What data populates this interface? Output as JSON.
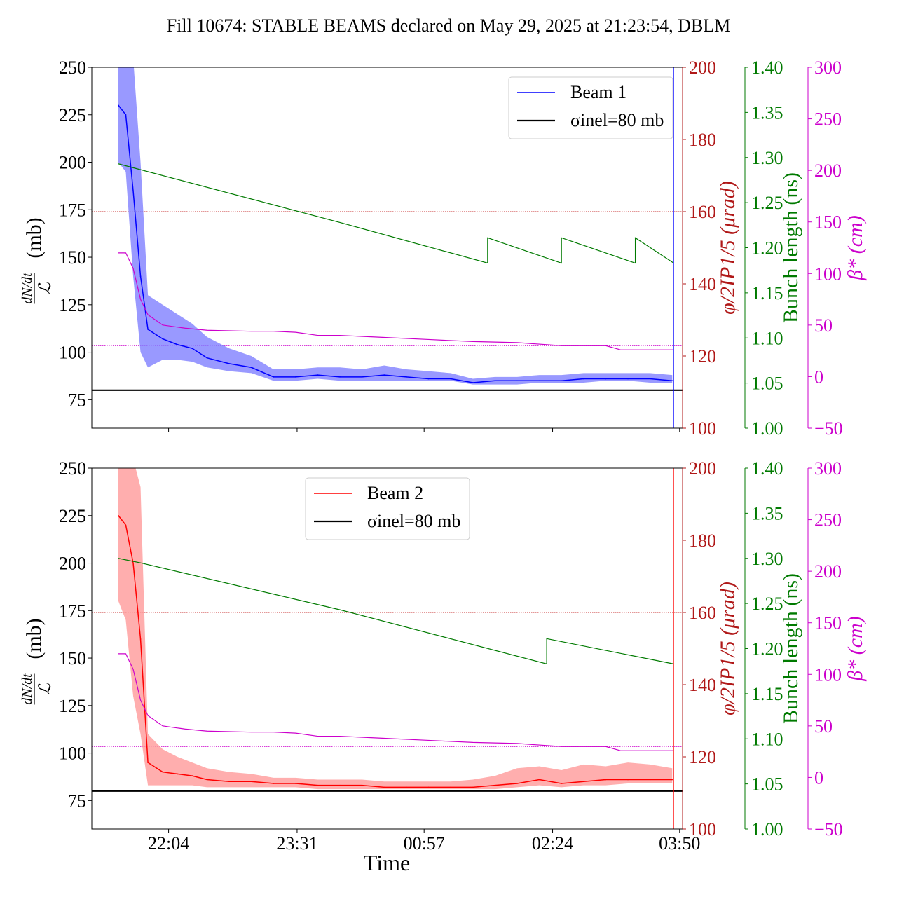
{
  "figure": {
    "title": "Fill 10674: STABLE BEAMS declared on May 29, 2025 at 21:23:54, DBLM",
    "xlabel": "Time"
  },
  "colors": {
    "beam1": "#0000ff",
    "beam1_band": "#8080ff",
    "beam2": "#ff0000",
    "beam2_band": "#ff9a9a",
    "sigma": "#000000",
    "phi": "#b01818",
    "phi_ref": "#c83232",
    "bunch": "#007a00",
    "beta": "#cc00cc"
  },
  "chart_data": [
    {
      "type": "line",
      "panel": "top",
      "ylabel_main": "(mb)",
      "ylabel_phi": "φ/2IP1/5 (μrad)",
      "ylabel_bunch": "Bunch length (ns)",
      "ylabel_beta": "β* (cm)",
      "xlim": [
        "21:12",
        "03:52"
      ],
      "x_ticks": [
        "22:04",
        "23:31",
        "00:57",
        "02:24",
        "03:50"
      ],
      "ylim_main": [
        60,
        250
      ],
      "y_ticks_main": [
        "75",
        "100",
        "125",
        "150",
        "175",
        "200",
        "225",
        "250"
      ],
      "ylim_phi": [
        100,
        200
      ],
      "y_ticks_phi": [
        "100",
        "120",
        "140",
        "160",
        "180",
        "200"
      ],
      "ylim_bunch": [
        1.0,
        1.4
      ],
      "y_ticks_bunch": [
        "1.00",
        "1.05",
        "1.10",
        "1.15",
        "1.20",
        "1.25",
        "1.30",
        "1.35",
        "1.40"
      ],
      "ylim_beta": [
        -50,
        300
      ],
      "y_ticks_beta": [
        "−50",
        "0",
        "50",
        "100",
        "150",
        "200",
        "250",
        "300"
      ],
      "legend": {
        "location": "upper right",
        "entries": [
          "Beam 1",
          "σinel=80 mb"
        ]
      },
      "sigma_inel_mb": 80,
      "phi_reference_urad": 160,
      "beta_reference_cm": 30,
      "series": [
        {
          "name": "Beam 1",
          "axis": "main",
          "x": [
            "21:30",
            "21:35",
            "21:40",
            "21:45",
            "21:50",
            "22:00",
            "22:10",
            "22:20",
            "22:30",
            "22:45",
            "23:00",
            "23:15",
            "23:30",
            "23:45",
            "00:00",
            "00:15",
            "00:30",
            "00:45",
            "01:00",
            "01:15",
            "01:30",
            "01:45",
            "02:00",
            "02:15",
            "02:30",
            "02:45",
            "03:00",
            "03:15",
            "03:30",
            "03:45"
          ],
          "values": [
            230,
            225,
            185,
            140,
            112,
            107,
            104,
            102,
            97,
            94,
            92,
            87,
            87,
            88,
            87,
            87,
            88,
            87,
            86,
            86,
            84,
            85,
            85,
            85,
            85,
            86,
            86,
            86,
            86,
            85
          ],
          "band_low": [
            200,
            195,
            140,
            100,
            92,
            96,
            96,
            95,
            92,
            90,
            89,
            85,
            85,
            86,
            85,
            85,
            85,
            85,
            85,
            85,
            83,
            83,
            83,
            84,
            84,
            84,
            85,
            85,
            84,
            84
          ],
          "band_high": [
            255,
            255,
            255,
            200,
            130,
            125,
            120,
            115,
            108,
            102,
            98,
            91,
            91,
            92,
            92,
            91,
            93,
            91,
            90,
            89,
            86,
            87,
            87,
            88,
            88,
            89,
            89,
            89,
            89,
            88
          ]
        },
        {
          "name": "Bunch length",
          "axis": "bunch",
          "x": [
            "21:30",
            "00:00",
            "01:40",
            "01:40",
            "02:30",
            "02:30",
            "03:20",
            "03:20",
            "03:46"
          ],
          "values": [
            1.293,
            1.228,
            1.183,
            1.211,
            1.183,
            1.211,
            1.183,
            1.211,
            1.183
          ]
        },
        {
          "name": "β*",
          "axis": "beta",
          "x": [
            "21:30",
            "21:35",
            "21:40",
            "21:45",
            "21:50",
            "22:00",
            "22:15",
            "22:30",
            "23:00",
            "23:15",
            "23:30",
            "23:45",
            "00:00",
            "00:30",
            "01:00",
            "01:30",
            "02:00",
            "02:30",
            "03:00",
            "03:10",
            "03:46"
          ],
          "values": [
            120,
            120,
            105,
            75,
            60,
            50,
            47,
            45,
            44,
            44,
            43,
            40,
            40,
            38,
            36,
            34,
            33,
            30,
            30,
            26,
            26
          ]
        },
        {
          "name": "Reference φ",
          "axis": "phi",
          "x": [
            "21:12",
            "03:52"
          ],
          "values": [
            160,
            160
          ]
        }
      ]
    },
    {
      "type": "line",
      "panel": "bottom",
      "ylabel_main": "(mb)",
      "ylabel_phi": "φ/2IP1/5 (μrad)",
      "ylabel_bunch": "Bunch length (ns)",
      "ylabel_beta": "β* (cm)",
      "xlim": [
        "21:12",
        "03:52"
      ],
      "x_ticks": [
        "22:04",
        "23:31",
        "00:57",
        "02:24",
        "03:50"
      ],
      "ylim_main": [
        60,
        250
      ],
      "y_ticks_main": [
        "75",
        "100",
        "125",
        "150",
        "175",
        "200",
        "225",
        "250"
      ],
      "ylim_phi": [
        100,
        200
      ],
      "y_ticks_phi": [
        "100",
        "120",
        "140",
        "160",
        "180",
        "200"
      ],
      "ylim_bunch": [
        1.0,
        1.4
      ],
      "y_ticks_bunch": [
        "1.00",
        "1.05",
        "1.10",
        "1.15",
        "1.20",
        "1.25",
        "1.30",
        "1.35",
        "1.40"
      ],
      "ylim_beta": [
        -50,
        300
      ],
      "y_ticks_beta": [
        "−50",
        "0",
        "50",
        "100",
        "150",
        "200",
        "250",
        "300"
      ],
      "legend": {
        "location": "upper center",
        "entries": [
          "Beam 2",
          "σinel=80 mb"
        ]
      },
      "sigma_inel_mb": 80,
      "phi_reference_urad": 160,
      "beta_reference_cm": 30,
      "series": [
        {
          "name": "Beam 2",
          "axis": "main",
          "x": [
            "21:30",
            "21:35",
            "21:40",
            "21:45",
            "21:50",
            "22:00",
            "22:10",
            "22:20",
            "22:30",
            "22:45",
            "23:00",
            "23:15",
            "23:30",
            "23:45",
            "00:00",
            "00:15",
            "00:30",
            "00:45",
            "01:00",
            "01:15",
            "01:30",
            "01:45",
            "02:00",
            "02:15",
            "02:30",
            "02:45",
            "03:00",
            "03:15",
            "03:30",
            "03:45"
          ],
          "values": [
            225,
            220,
            200,
            160,
            95,
            90,
            89,
            88,
            86,
            85,
            85,
            84,
            84,
            83,
            83,
            83,
            82,
            82,
            82,
            82,
            82,
            83,
            84,
            86,
            84,
            85,
            86,
            86,
            86,
            86
          ],
          "band_low": [
            180,
            170,
            130,
            110,
            83,
            83,
            83,
            83,
            82,
            82,
            82,
            82,
            82,
            81,
            81,
            81,
            81,
            81,
            81,
            81,
            81,
            81,
            82,
            83,
            82,
            83,
            83,
            84,
            84,
            84
          ],
          "band_high": [
            255,
            255,
            255,
            240,
            110,
            102,
            98,
            95,
            92,
            90,
            89,
            87,
            87,
            86,
            86,
            86,
            85,
            85,
            85,
            85,
            86,
            88,
            92,
            93,
            91,
            94,
            93,
            95,
            94,
            92
          ]
        },
        {
          "name": "Bunch length",
          "axis": "bunch",
          "x": [
            "21:30",
            "21:45",
            "00:00",
            "02:20",
            "02:20",
            "03:46"
          ],
          "values": [
            1.3,
            1.295,
            1.243,
            1.183,
            1.211,
            1.183
          ]
        },
        {
          "name": "β*",
          "axis": "beta",
          "x": [
            "21:30",
            "21:35",
            "21:40",
            "21:45",
            "21:50",
            "22:00",
            "22:15",
            "22:30",
            "23:00",
            "23:15",
            "23:30",
            "23:45",
            "00:00",
            "00:30",
            "01:00",
            "01:30",
            "02:00",
            "02:30",
            "03:00",
            "03:10",
            "03:46"
          ],
          "values": [
            120,
            120,
            105,
            75,
            60,
            50,
            47,
            45,
            44,
            44,
            43,
            40,
            40,
            38,
            36,
            34,
            33,
            30,
            30,
            26,
            26
          ]
        },
        {
          "name": "Reference φ",
          "axis": "phi",
          "x": [
            "21:12",
            "03:52"
          ],
          "values": [
            160,
            160
          ]
        }
      ]
    }
  ]
}
